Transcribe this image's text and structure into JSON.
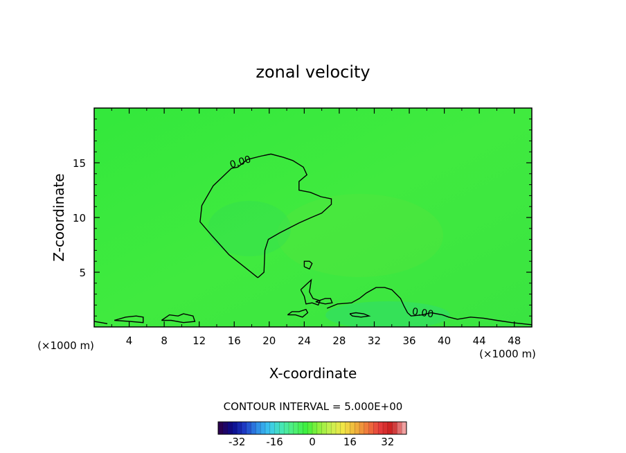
{
  "chart_data": {
    "type": "heatmap",
    "title": "zonal velocity",
    "xlabel": "X-coordinate",
    "ylabel": "Z-coordinate",
    "x_unit_left": "(×1000 m)",
    "x_unit_right": "(×1000 m)",
    "xlim": [
      0,
      50
    ],
    "ylim": [
      0,
      20
    ],
    "x_ticks": [
      4,
      8,
      12,
      16,
      20,
      24,
      28,
      32,
      36,
      40,
      44,
      48
    ],
    "y_ticks": [
      5,
      10,
      15
    ],
    "contour_interval_label": "CONTOUR INTERVAL = 5.000E+00",
    "contour_labels": [
      {
        "text": "0.00",
        "x": 16.8,
        "y": 14.8,
        "angle": -17
      },
      {
        "text": "0.00",
        "x": 37.5,
        "y": 1.0,
        "angle": 8
      }
    ],
    "zero_contours": [
      [
        [
          18.7,
          4.5
        ],
        [
          17.6,
          5.2
        ],
        [
          15.4,
          6.6
        ],
        [
          13.5,
          8.3
        ],
        [
          12.1,
          9.6
        ],
        [
          12.3,
          11.1
        ],
        [
          13.6,
          12.9
        ],
        [
          15.7,
          14.5
        ],
        [
          16.4,
          14.6
        ],
        [
          17.5,
          15.3
        ],
        [
          19.0,
          15.6
        ],
        [
          20.2,
          15.8
        ],
        [
          21.6,
          15.5
        ],
        [
          22.7,
          15.2
        ],
        [
          23.9,
          14.6
        ],
        [
          24.3,
          13.9
        ],
        [
          23.4,
          13.3
        ],
        [
          23.4,
          12.5
        ],
        [
          24.7,
          12.3
        ],
        [
          25.9,
          11.9
        ],
        [
          27.1,
          11.7
        ],
        [
          27.1,
          11.2
        ],
        [
          26.0,
          10.4
        ],
        [
          24.8,
          10.0
        ],
        [
          23.4,
          9.5
        ],
        [
          21.2,
          8.6
        ],
        [
          19.9,
          8.0
        ],
        [
          19.5,
          7.0
        ],
        [
          19.4,
          5.0
        ],
        [
          18.7,
          4.5
        ]
      ],
      [
        [
          24.0,
          5.5
        ],
        [
          24.6,
          5.3
        ],
        [
          24.9,
          5.8
        ],
        [
          24.6,
          6.0
        ],
        [
          24.0,
          6.0
        ],
        [
          24.0,
          5.5
        ]
      ],
      [
        [
          23.6,
          3.4
        ],
        [
          24.4,
          4.0
        ],
        [
          24.8,
          4.3
        ],
        [
          24.6,
          3.2
        ],
        [
          25.0,
          2.6
        ],
        [
          25.8,
          2.4
        ],
        [
          25.6,
          2.0
        ],
        [
          24.9,
          2.2
        ],
        [
          24.2,
          2.1
        ],
        [
          24.0,
          2.8
        ],
        [
          23.6,
          3.4
        ]
      ],
      [
        [
          25.3,
          2.3
        ],
        [
          26.4,
          2.6
        ],
        [
          27.0,
          2.6
        ],
        [
          27.2,
          2.2
        ],
        [
          26.4,
          2.1
        ],
        [
          25.3,
          2.3
        ]
      ],
      [
        [
          26.6,
          1.7
        ],
        [
          27.8,
          2.1
        ],
        [
          29.4,
          2.2
        ],
        [
          30.3,
          2.6
        ],
        [
          31.1,
          3.1
        ],
        [
          32.2,
          3.6
        ],
        [
          33.2,
          3.6
        ],
        [
          34.0,
          3.4
        ],
        [
          35.0,
          2.6
        ],
        [
          35.4,
          1.9
        ],
        [
          35.8,
          1.3
        ],
        [
          36.2,
          1.0
        ],
        [
          37.5,
          1.1
        ],
        [
          38.5,
          1.3
        ],
        [
          39.8,
          1.1
        ],
        [
          40.5,
          0.9
        ],
        [
          41.5,
          0.7
        ],
        [
          43.0,
          0.9
        ],
        [
          44.5,
          0.8
        ],
        [
          46.0,
          0.6
        ],
        [
          47.7,
          0.4
        ],
        [
          50.0,
          0.2
        ]
      ],
      [
        [
          29.2,
          1.2
        ],
        [
          29.5,
          1.0
        ],
        [
          30.5,
          0.9
        ],
        [
          31.4,
          1.0
        ],
        [
          30.8,
          1.2
        ],
        [
          29.9,
          1.3
        ],
        [
          29.2,
          1.2
        ]
      ],
      [
        [
          22.1,
          1.1
        ],
        [
          23.0,
          1.1
        ],
        [
          23.8,
          0.9
        ],
        [
          24.4,
          1.3
        ],
        [
          24.2,
          1.6
        ],
        [
          23.4,
          1.4
        ],
        [
          22.6,
          1.4
        ],
        [
          22.1,
          1.1
        ]
      ],
      [
        [
          2.3,
          0.6
        ],
        [
          3.6,
          0.9
        ],
        [
          4.8,
          1.0
        ],
        [
          5.6,
          0.9
        ],
        [
          5.6,
          0.4
        ],
        [
          4.1,
          0.5
        ],
        [
          2.3,
          0.6
        ]
      ],
      [
        [
          7.7,
          0.6
        ],
        [
          8.6,
          1.1
        ],
        [
          9.6,
          1.0
        ],
        [
          10.2,
          1.2
        ],
        [
          11.3,
          1.0
        ],
        [
          11.5,
          0.5
        ],
        [
          10.2,
          0.4
        ],
        [
          8.8,
          0.6
        ],
        [
          7.7,
          0.6
        ]
      ],
      [
        [
          0.0,
          0.5
        ],
        [
          0.8,
          0.4
        ],
        [
          1.5,
          0.3
        ]
      ]
    ],
    "colorbar": {
      "ticks": [
        -32,
        -16,
        0,
        16,
        32
      ],
      "tick_labels": [
        "-32",
        "-16",
        "0",
        "16",
        "32"
      ],
      "range": [
        -40,
        40
      ],
      "colors": [
        "#2a0050",
        "#0a0a8c",
        "#1e3cc8",
        "#2f8ce6",
        "#3cc8f0",
        "#46e6b4",
        "#50f078",
        "#3cf03c",
        "#8cf03c",
        "#c8f050",
        "#f0e646",
        "#f0b43c",
        "#f0783c",
        "#e63c3c",
        "#c81e1e",
        "#f0a0a0"
      ]
    },
    "field_note": "nearly uniform near-zero zonal velocity (bright green) across the domain"
  }
}
